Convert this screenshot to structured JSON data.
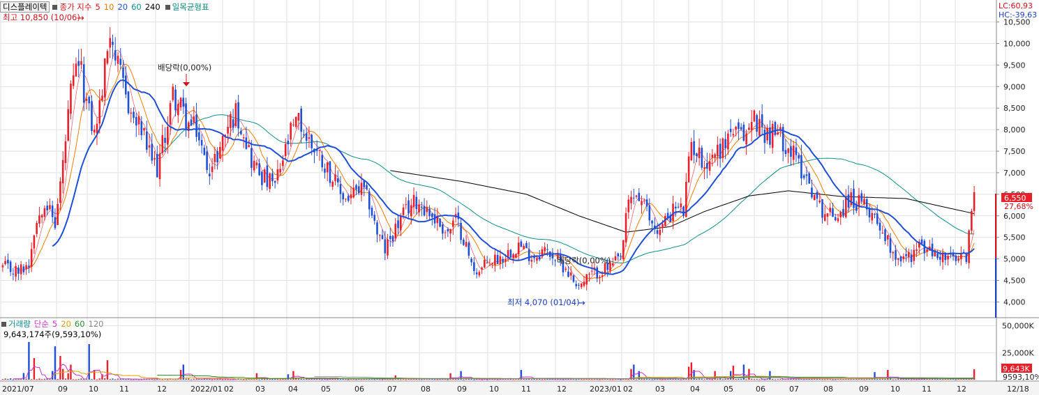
{
  "legend": {
    "stock_name": "디스플레이텍",
    "price_label": "종가 지수",
    "ma_periods": [
      "5",
      "10",
      "20",
      "60",
      "240"
    ],
    "ichimoku": "일목균형표"
  },
  "volume_legend": {
    "label": "거래량",
    "simple_label": "단순",
    "ma_periods": [
      "5",
      "20",
      "60",
      "120"
    ],
    "current": "9,643,174주(9,593,10%)"
  },
  "corner": {
    "lc": "LC:60,93",
    "hc": "HC:-39,63"
  },
  "annotations": {
    "high": "최고 10,850 (10/06)",
    "low": "최저 4,070 (01/04)",
    "dividend_1": "배당락(0,00%)",
    "dividend_2": "배당락(0,00%)"
  },
  "price_badge": {
    "value": "6,550",
    "change": "27,68%"
  },
  "volume_badge": {
    "value": "9,643K",
    "ma": "9593,10%"
  },
  "colors": {
    "up": "#e8202a",
    "down": "#1f4fd6",
    "ma5": "#e8202a",
    "ma10": "#f07d00",
    "ma20": "#1f4fd6",
    "ma60": "#0e8f8f",
    "ma240": "#000000",
    "vma5": "#cc33cc",
    "vma20": "#e0a000",
    "vma60": "#2a8f2a",
    "vma120": "#888888",
    "grid": "#e2e2e2"
  },
  "chart_data": [
    {
      "type": "candlestick",
      "title": "디스플레이텍",
      "x_ticks": [
        "2021/07",
        "09",
        "10",
        "11",
        "12",
        "2022/01",
        "02",
        "03",
        "04",
        "05",
        "06",
        "07",
        "08",
        "09",
        "10",
        "11",
        "12",
        "2023/01",
        "02",
        "03",
        "04",
        "05",
        "06",
        "07",
        "08",
        "09",
        "10",
        "11",
        "12",
        "12/18"
      ],
      "y_ticks": [
        "10,500",
        "10,000",
        "9,500",
        "9,000",
        "8,500",
        "8,000",
        "7,500",
        "7,000",
        "6,500",
        "6,000",
        "5,500",
        "5,000",
        "4,500",
        "4,000"
      ],
      "ylim": [
        3700,
        10880
      ],
      "high": {
        "value": 10850,
        "date": "10/06"
      },
      "low": {
        "value": 4070,
        "date": "01/04"
      },
      "last_close": 6550,
      "change_pct": 27.68,
      "close_path": [
        [
          0,
          4800
        ],
        [
          6,
          4700
        ],
        [
          10,
          4900
        ],
        [
          12,
          5700
        ],
        [
          16,
          6400
        ],
        [
          20,
          5800
        ],
        [
          23,
          7200
        ],
        [
          26,
          8800
        ],
        [
          29,
          9600
        ],
        [
          32,
          8600
        ],
        [
          35,
          7900
        ],
        [
          38,
          8900
        ],
        [
          41,
          10400
        ],
        [
          44,
          9400
        ],
        [
          47,
          8800
        ],
        [
          50,
          8200
        ],
        [
          53,
          8000
        ],
        [
          56,
          7400
        ],
        [
          59,
          7100
        ],
        [
          62,
          7900
        ],
        [
          65,
          8800
        ],
        [
          68,
          8500
        ],
        [
          71,
          8100
        ],
        [
          74,
          8000
        ],
        [
          77,
          7300
        ],
        [
          80,
          7100
        ],
        [
          83,
          7600
        ],
        [
          86,
          8100
        ],
        [
          89,
          8400
        ],
        [
          92,
          8000
        ],
        [
          95,
          7300
        ],
        [
          98,
          7000
        ],
        [
          101,
          6800
        ],
        [
          104,
          6700
        ],
        [
          107,
          7300
        ],
        [
          110,
          7900
        ],
        [
          113,
          8200
        ],
        [
          116,
          7800
        ],
        [
          119,
          7600
        ],
        [
          122,
          7300
        ],
        [
          125,
          7000
        ],
        [
          128,
          6600
        ],
        [
          131,
          6400
        ],
        [
          134,
          6500
        ],
        [
          137,
          6600
        ],
        [
          140,
          6300
        ],
        [
          143,
          5600
        ],
        [
          146,
          5200
        ],
        [
          149,
          5600
        ],
        [
          152,
          5900
        ],
        [
          155,
          6200
        ],
        [
          158,
          6350
        ],
        [
          161,
          6200
        ],
        [
          164,
          6000
        ],
        [
          167,
          5800
        ],
        [
          170,
          5600
        ],
        [
          173,
          5900
        ],
        [
          176,
          5500
        ],
        [
          179,
          4850
        ],
        [
          182,
          4700
        ],
        [
          185,
          4900
        ],
        [
          188,
          5000
        ],
        [
          191,
          5050
        ],
        [
          194,
          5200
        ],
        [
          197,
          5350
        ],
        [
          200,
          5150
        ],
        [
          203,
          5050
        ],
        [
          206,
          5200
        ],
        [
          209,
          5150
        ],
        [
          212,
          4950
        ],
        [
          215,
          4800
        ],
        [
          218,
          4500
        ],
        [
          221,
          4400
        ],
        [
          224,
          4600
        ],
        [
          227,
          4700
        ],
        [
          230,
          4750
        ],
        [
          233,
          4850
        ],
        [
          236,
          5000
        ],
        [
          239,
          6300
        ],
        [
          242,
          6500
        ],
        [
          245,
          6200
        ],
        [
          248,
          5800
        ],
        [
          251,
          5650
        ],
        [
          254,
          6000
        ],
        [
          257,
          6200
        ],
        [
          260,
          6100
        ],
        [
          263,
          7700
        ],
        [
          266,
          7400
        ],
        [
          269,
          7200
        ],
        [
          272,
          7500
        ],
        [
          275,
          7600
        ],
        [
          278,
          8000
        ],
        [
          281,
          7800
        ],
        [
          284,
          7900
        ],
        [
          287,
          8300
        ],
        [
          290,
          8000
        ],
        [
          293,
          7900
        ],
        [
          296,
          7900
        ],
        [
          299,
          7700
        ],
        [
          302,
          7400
        ],
        [
          305,
          7100
        ],
        [
          308,
          6800
        ],
        [
          311,
          6300
        ],
        [
          314,
          6100
        ],
        [
          317,
          6000
        ],
        [
          320,
          6100
        ],
        [
          323,
          6400
        ],
        [
          326,
          6300
        ],
        [
          329,
          6200
        ],
        [
          332,
          6100
        ],
        [
          335,
          5800
        ],
        [
          338,
          5400
        ],
        [
          341,
          5100
        ],
        [
          344,
          5000
        ],
        [
          347,
          5100
        ],
        [
          350,
          5300
        ],
        [
          353,
          5200
        ],
        [
          356,
          5100
        ],
        [
          359,
          5050
        ],
        [
          362,
          5000
        ],
        [
          365,
          4950
        ],
        [
          368,
          5100
        ],
        [
          371,
          6550
        ]
      ],
      "ma240_path": [
        [
          148,
          7050
        ],
        [
          175,
          6800
        ],
        [
          200,
          6500
        ],
        [
          220,
          6000
        ],
        [
          238,
          5620
        ],
        [
          255,
          5750
        ],
        [
          268,
          6100
        ],
        [
          285,
          6460
        ],
        [
          300,
          6580
        ],
        [
          320,
          6450
        ],
        [
          345,
          6400
        ],
        [
          371,
          6050
        ]
      ]
    },
    {
      "type": "bar",
      "title": "거래량",
      "y_ticks": [
        "50,000K",
        "25,000K"
      ],
      "ylim": [
        0,
        55000
      ],
      "current_volume": 9643174,
      "spikes": [
        [
          8,
          6200
        ],
        [
          10,
          35000
        ],
        [
          12,
          20000
        ],
        [
          19,
          8000
        ],
        [
          20,
          31000
        ],
        [
          22,
          22000
        ],
        [
          23,
          10000
        ],
        [
          25,
          6000
        ],
        [
          26,
          14000
        ],
        [
          33,
          33000
        ],
        [
          35,
          9000
        ],
        [
          38,
          5000
        ],
        [
          40,
          18000
        ],
        [
          68,
          9000
        ],
        [
          69,
          14000
        ],
        [
          97,
          6000
        ],
        [
          109,
          5000
        ],
        [
          111,
          8000
        ],
        [
          150,
          4000
        ],
        [
          171,
          6000
        ],
        [
          175,
          8000
        ],
        [
          198,
          9000
        ],
        [
          240,
          10000
        ],
        [
          241,
          14000
        ],
        [
          243,
          8000
        ],
        [
          262,
          12000
        ],
        [
          263,
          16000
        ],
        [
          264,
          9000
        ],
        [
          272,
          8000
        ],
        [
          278,
          8000
        ],
        [
          279,
          13000
        ],
        [
          283,
          14000
        ],
        [
          285,
          10000
        ],
        [
          293,
          8000
        ],
        [
          333,
          7000
        ],
        [
          338,
          9000
        ],
        [
          371,
          9643
        ]
      ]
    }
  ]
}
